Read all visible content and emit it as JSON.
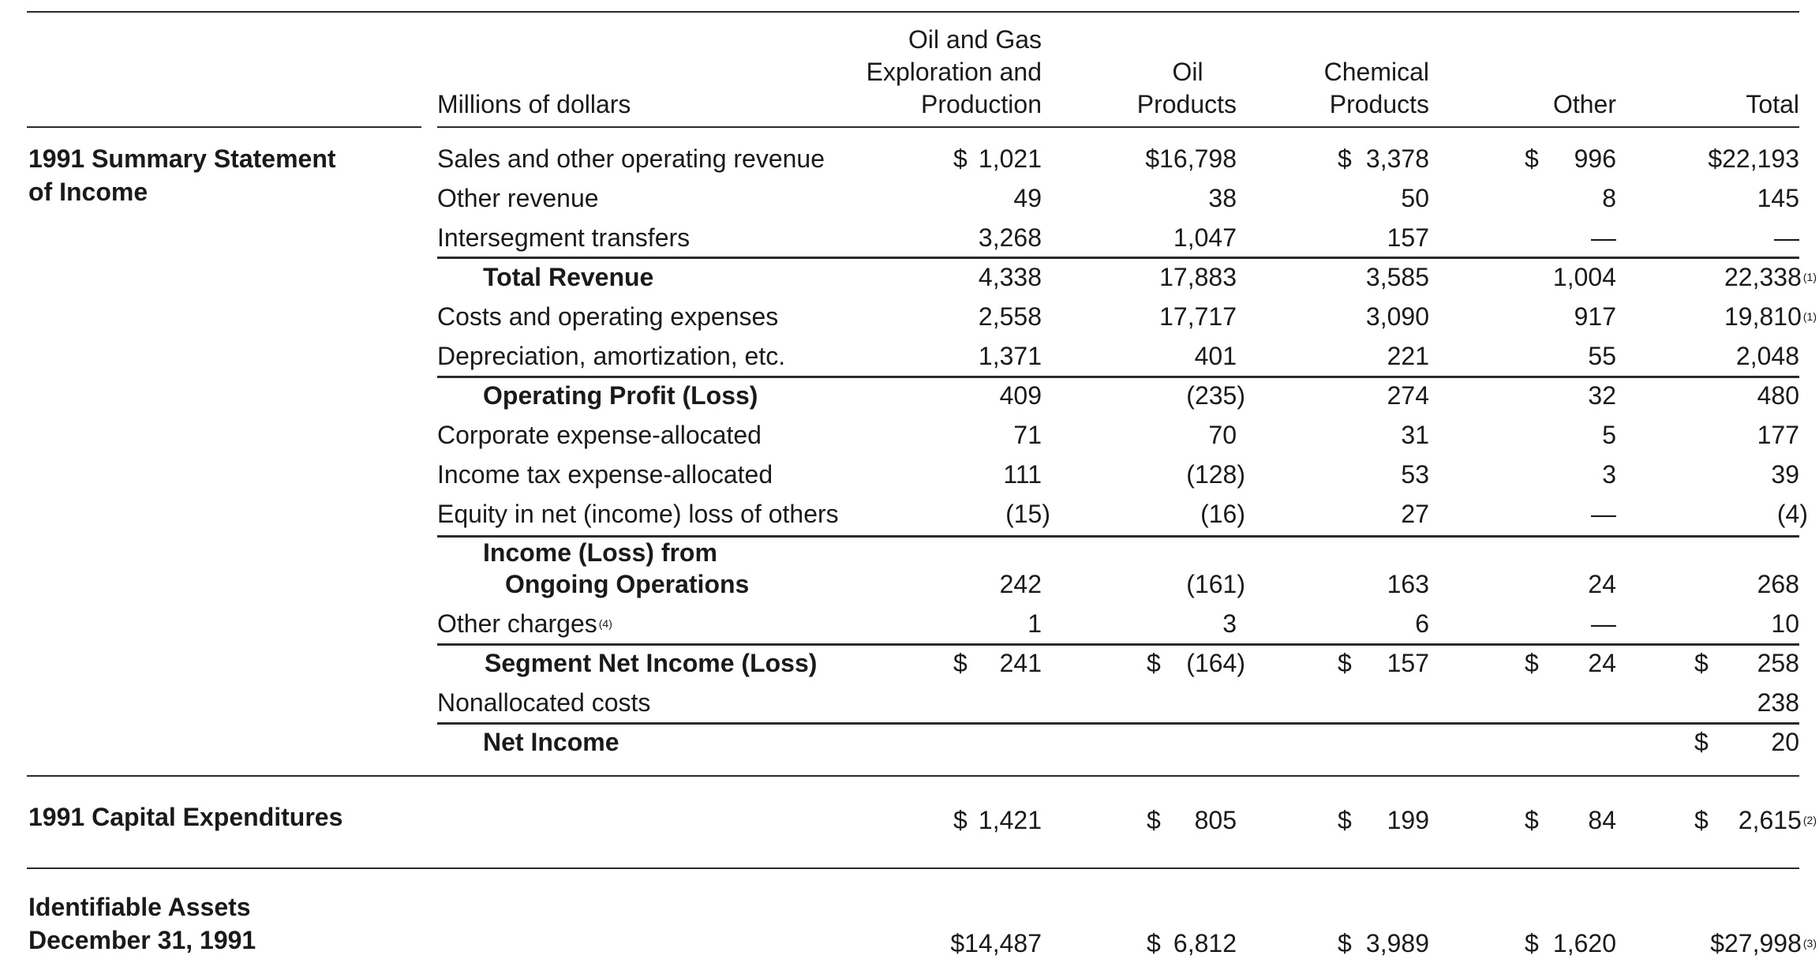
{
  "header": {
    "units_label": "Millions of dollars",
    "col_ogep": [
      "Oil and Gas",
      "Exploration and",
      "Production"
    ],
    "col_oil": [
      "Oil",
      "Products"
    ],
    "col_chem": [
      "Chemical",
      "Products"
    ],
    "col_other": "Other",
    "col_total": "Total"
  },
  "sections": {
    "income": [
      "1991 Summary Statement",
      "of Income"
    ],
    "capex": "1991 Capital Expenditures",
    "assets": [
      "Identifiable  Assets",
      "December 31, 1991"
    ]
  },
  "rows": [
    {
      "label": "Sales and other operating revenue",
      "v": [
        "1,021",
        "$16,798",
        "3,378",
        "996",
        "$22,193"
      ],
      "d": [
        "$",
        "",
        "$",
        "$",
        ""
      ]
    },
    {
      "label": "Other revenue",
      "v": [
        "49",
        "38",
        "50",
        "8",
        "145"
      ]
    },
    {
      "label": "Intersegment transfers",
      "v": [
        "3,268",
        "1,047",
        "157",
        "—",
        "—"
      ]
    },
    {
      "label": "Total Revenue",
      "v": [
        "4,338",
        "17,883",
        "3,585",
        "1,004",
        "22,338"
      ],
      "fn": "(1)"
    },
    {
      "label": "Costs and operating expenses",
      "v": [
        "2,558",
        "17,717",
        "3,090",
        "917",
        "19,810"
      ],
      "fn": "(1)"
    },
    {
      "label": "Depreciation, amortization, etc.",
      "v": [
        "1,371",
        "401",
        "221",
        "55",
        "2,048"
      ]
    },
    {
      "label": "Operating Profit (Loss)",
      "v": [
        "409",
        "(235)",
        "274",
        "32",
        "480"
      ]
    },
    {
      "label": "Corporate expense-allocated",
      "v": [
        "71",
        "70",
        "31",
        "5",
        "177"
      ]
    },
    {
      "label": "Income tax expense-allocated",
      "v": [
        "111",
        "(128)",
        "53",
        "3",
        "39"
      ]
    },
    {
      "label": "Equity in net (income) loss of others",
      "v": [
        "(15)",
        "(16)",
        "27",
        "—",
        "(4)"
      ]
    },
    {
      "label": [
        "Income (Loss) from",
        "Ongoing Operations"
      ],
      "v": [
        "242",
        "(161)",
        "163",
        "24",
        "268"
      ]
    },
    {
      "label": "Other charges",
      "fn_label": "(4)",
      "v": [
        "1",
        "3",
        "6",
        "—",
        "10"
      ]
    },
    {
      "label": "Segment Net Income (Loss)",
      "v": [
        "241",
        "(164)",
        "157",
        "24",
        "258"
      ],
      "d": [
        "$",
        "$",
        "$",
        "$",
        "$"
      ]
    },
    {
      "label": "Nonallocated costs",
      "v": [
        "",
        "",
        "",
        "",
        "238"
      ]
    },
    {
      "label": "Net Income",
      "v": [
        "",
        "",
        "",
        "",
        "20"
      ],
      "d": [
        "",
        "",
        "",
        "",
        "$"
      ]
    }
  ],
  "capex": {
    "v": [
      "1,421",
      "805",
      "199",
      "84",
      "2,615"
    ],
    "d": [
      "$",
      "$",
      "$",
      "$",
      "$"
    ],
    "fn": "(2)"
  },
  "assets": {
    "v": [
      "$14,487",
      "6,812",
      "3,989",
      "1,620",
      "$27,998"
    ],
    "d": [
      "",
      "$",
      "$",
      "$",
      ""
    ],
    "fn": "(3)"
  }
}
